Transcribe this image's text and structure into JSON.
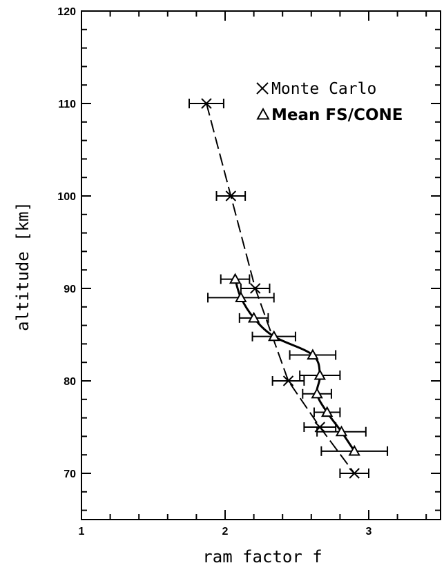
{
  "chart_data": {
    "type": "scatter",
    "xlabel": "ram factor f",
    "ylabel": "altitude [km]",
    "xlim": [
      1,
      3.5
    ],
    "ylim": [
      65,
      120
    ],
    "x_ticks": [
      "1",
      "2",
      "3"
    ],
    "y_ticks": [
      "70",
      "80",
      "90",
      "100",
      "110",
      "120"
    ],
    "legend_position": "top-right",
    "series": [
      {
        "name": "Monte Carlo",
        "marker": "x",
        "line": "dashed",
        "points": [
          {
            "x": 1.87,
            "y": 110,
            "xerr": 0.12
          },
          {
            "x": 2.04,
            "y": 100,
            "xerr": 0.1
          },
          {
            "x": 2.21,
            "y": 90,
            "xerr": 0.1
          },
          {
            "x": 2.44,
            "y": 80,
            "xerr": 0.11
          },
          {
            "x": 2.66,
            "y": 75,
            "xerr": 0.11
          },
          {
            "x": 2.9,
            "y": 70,
            "xerr": 0.1
          }
        ]
      },
      {
        "name": "Mean FS/CONE",
        "marker": "triangle",
        "line": "solid-smooth",
        "points": [
          {
            "x": 2.07,
            "y": 91.0,
            "xerr": 0.1
          },
          {
            "x": 2.11,
            "y": 89.0,
            "xerr": 0.23
          },
          {
            "x": 2.2,
            "y": 86.8,
            "xerr": 0.1
          },
          {
            "x": 2.34,
            "y": 84.8,
            "xerr": 0.15
          },
          {
            "x": 2.61,
            "y": 82.8,
            "xerr": 0.16
          },
          {
            "x": 2.66,
            "y": 80.6,
            "xerr": 0.14
          },
          {
            "x": 2.64,
            "y": 78.6,
            "xerr": 0.1
          },
          {
            "x": 2.71,
            "y": 76.6,
            "xerr": 0.09
          },
          {
            "x": 2.81,
            "y": 74.5,
            "xerr": 0.17
          },
          {
            "x": 2.9,
            "y": 72.4,
            "xerr": 0.23
          }
        ]
      }
    ]
  }
}
